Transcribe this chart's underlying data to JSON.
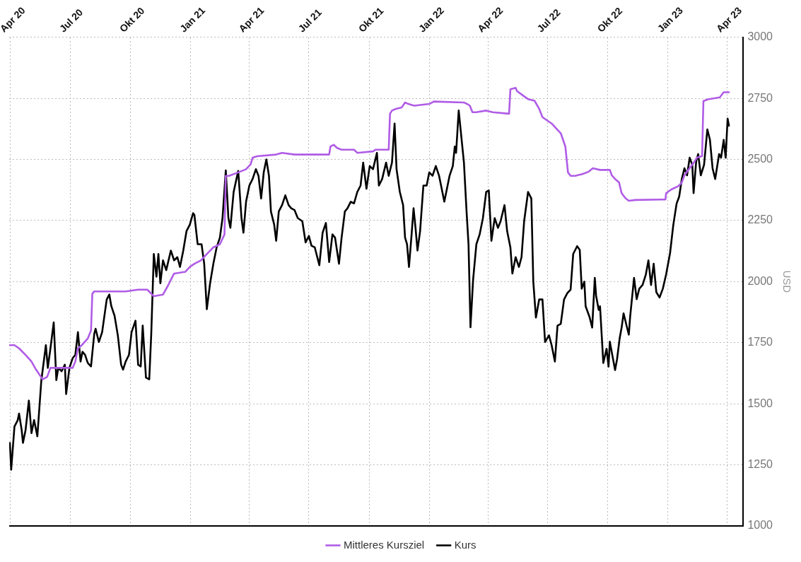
{
  "chart_data": {
    "type": "line",
    "ylabel": "USD",
    "xlim": [
      "2020-03-30",
      "2023-04-26"
    ],
    "xticks": [
      {
        "value": "2020-04-01",
        "label": "Apr 20"
      },
      {
        "value": "2020-07-01",
        "label": "Jul 20"
      },
      {
        "value": "2020-10-01",
        "label": "Okt 20"
      },
      {
        "value": "2021-01-01",
        "label": "Jan 21"
      },
      {
        "value": "2021-04-01",
        "label": "Apr 21"
      },
      {
        "value": "2021-07-01",
        "label": "Jul 21"
      },
      {
        "value": "2021-10-01",
        "label": "Okt 21"
      },
      {
        "value": "2022-01-01",
        "label": "Jan 22"
      },
      {
        "value": "2022-04-01",
        "label": "Apr 22"
      },
      {
        "value": "2022-07-01",
        "label": "Jul 22"
      },
      {
        "value": "2022-10-01",
        "label": "Okt 22"
      },
      {
        "value": "2023-01-01",
        "label": "Jan 23"
      },
      {
        "value": "2023-04-01",
        "label": "Apr 23"
      }
    ],
    "ylim": [
      1000,
      3000
    ],
    "yticks": [
      1000,
      1250,
      1500,
      1750,
      2000,
      2250,
      2500,
      2750,
      3000
    ],
    "grid": true,
    "legend": "bottom",
    "marker": "none",
    "line_style": "solid",
    "series": [
      {
        "name": "Mittleres Kursziel",
        "color": "#b05ce6",
        "x": [
          "2020-03-31",
          "2020-04-07",
          "2020-04-14",
          "2020-04-24",
          "2020-05-03",
          "2020-05-10",
          "2020-05-20",
          "2020-05-27",
          "2020-06-01",
          "2020-07-05",
          "2020-07-09",
          "2020-07-13",
          "2020-07-19",
          "2020-07-28",
          "2020-08-02",
          "2020-08-04",
          "2020-08-07",
          "2020-09-24",
          "2020-10-13",
          "2020-10-27",
          "2020-11-06",
          "2020-11-20",
          "2020-11-27",
          "2020-12-02",
          "2020-12-07",
          "2020-12-24",
          "2020-12-31",
          "2021-01-07",
          "2021-01-17",
          "2021-01-26",
          "2021-02-05",
          "2021-02-15",
          "2021-02-22",
          "2021-02-24",
          "2021-03-01",
          "2021-03-15",
          "2021-03-27",
          "2021-04-03",
          "2021-04-06",
          "2021-04-13",
          "2021-05-12",
          "2021-05-21",
          "2021-06-09",
          "2021-07-17",
          "2021-08-01",
          "2021-08-03",
          "2021-08-08",
          "2021-08-13",
          "2021-08-20",
          "2021-09-08",
          "2021-09-13",
          "2021-10-07",
          "2021-10-11",
          "2021-10-31",
          "2021-11-02",
          "2021-11-05",
          "2021-11-11",
          "2021-11-20",
          "2021-11-25",
          "2021-11-30",
          "2021-12-09",
          "2022-01-01",
          "2022-01-08",
          "2022-02-23",
          "2022-02-28",
          "2022-03-04",
          "2022-03-08",
          "2022-03-14",
          "2022-03-29",
          "2022-04-08",
          "2022-05-03",
          "2022-05-05",
          "2022-05-13",
          "2022-05-15",
          "2022-05-25",
          "2022-06-01",
          "2022-06-11",
          "2022-06-18",
          "2022-06-23",
          "2022-07-07",
          "2022-07-21",
          "2022-07-28",
          "2022-08-01",
          "2022-08-05",
          "2022-08-12",
          "2022-08-23",
          "2022-09-01",
          "2022-09-08",
          "2022-09-19",
          "2022-10-04",
          "2022-10-07",
          "2022-10-12",
          "2022-10-18",
          "2022-10-22",
          "2022-10-28",
          "2022-11-02",
          "2022-11-12",
          "2022-12-21",
          "2022-12-28",
          "2022-12-29",
          "2023-01-06",
          "2023-01-17",
          "2023-01-22",
          "2023-01-26",
          "2023-02-01",
          "2023-02-09",
          "2023-02-14",
          "2023-02-22",
          "2023-02-24",
          "2023-03-03",
          "2023-03-21",
          "2023-03-27",
          "2023-04-04"
        ],
        "values": [
          1740,
          1740,
          1727,
          1700,
          1673,
          1640,
          1600,
          1610,
          1647,
          1647,
          1673,
          1727,
          1740,
          1767,
          1800,
          1950,
          1960,
          1960,
          1967,
          1967,
          1940,
          1947,
          1980,
          2007,
          2033,
          2040,
          2060,
          2073,
          2087,
          2113,
          2140,
          2153,
          2193,
          2433,
          2433,
          2447,
          2460,
          2480,
          2507,
          2513,
          2520,
          2527,
          2520,
          2520,
          2520,
          2553,
          2560,
          2547,
          2540,
          2540,
          2527,
          2533,
          2540,
          2540,
          2687,
          2700,
          2707,
          2713,
          2733,
          2727,
          2720,
          2727,
          2737,
          2733,
          2727,
          2720,
          2693,
          2693,
          2700,
          2693,
          2687,
          2787,
          2793,
          2780,
          2760,
          2747,
          2740,
          2707,
          2673,
          2647,
          2607,
          2553,
          2447,
          2433,
          2433,
          2440,
          2449,
          2464,
          2457,
          2457,
          2435,
          2420,
          2406,
          2362,
          2341,
          2331,
          2334,
          2336,
          2336,
          2362,
          2377,
          2391,
          2406,
          2435,
          2457,
          2486,
          2507,
          2514,
          2739,
          2746,
          2754,
          2775,
          2775
        ]
      },
      {
        "name": "Kurs",
        "color": "#000000",
        "x": [
          "2020-03-31",
          "2020-04-02",
          "2020-04-07",
          "2020-04-12",
          "2020-04-14",
          "2020-04-18",
          "2020-04-20",
          "2020-04-24",
          "2020-04-29",
          "2020-05-03",
          "2020-05-07",
          "2020-05-12",
          "2020-05-18",
          "2020-05-25",
          "2020-05-28",
          "2020-06-01",
          "2020-06-06",
          "2020-06-10",
          "2020-06-13",
          "2020-06-18",
          "2020-06-23",
          "2020-06-25",
          "2020-06-30",
          "2020-07-05",
          "2020-07-09",
          "2020-07-13",
          "2020-07-17",
          "2020-07-20",
          "2020-07-24",
          "2020-07-28",
          "2020-08-02",
          "2020-08-07",
          "2020-08-09",
          "2020-08-14",
          "2020-08-19",
          "2020-08-26",
          "2020-08-30",
          "2020-09-02",
          "2020-09-07",
          "2020-09-12",
          "2020-09-17",
          "2020-09-20",
          "2020-09-24",
          "2020-09-29",
          "2020-10-03",
          "2020-10-09",
          "2020-10-13",
          "2020-10-17",
          "2020-10-20",
          "2020-10-25",
          "2020-10-30",
          "2020-11-02",
          "2020-11-06",
          "2020-11-10",
          "2020-11-13",
          "2020-11-16",
          "2020-11-20",
          "2020-11-25",
          "2020-12-02",
          "2020-12-07",
          "2020-12-12",
          "2020-12-16",
          "2020-12-21",
          "2020-12-26",
          "2020-12-31",
          "2021-01-05",
          "2021-01-07",
          "2021-01-12",
          "2021-01-18",
          "2021-01-22",
          "2021-01-26",
          "2021-01-31",
          "2021-02-05",
          "2021-02-10",
          "2021-02-15",
          "2021-02-19",
          "2021-02-24",
          "2021-02-28",
          "2021-03-03",
          "2021-03-08",
          "2021-03-15",
          "2021-03-20",
          "2021-03-23",
          "2021-03-27",
          "2021-04-01",
          "2021-04-06",
          "2021-04-11",
          "2021-04-15",
          "2021-04-19",
          "2021-04-23",
          "2021-04-27",
          "2021-05-01",
          "2021-05-04",
          "2021-05-09",
          "2021-05-12",
          "2021-05-16",
          "2021-05-21",
          "2021-05-26",
          "2021-05-31",
          "2021-06-04",
          "2021-06-09",
          "2021-06-14",
          "2021-06-21",
          "2021-06-26",
          "2021-07-01",
          "2021-07-05",
          "2021-07-10",
          "2021-07-17",
          "2021-07-22",
          "2021-07-27",
          "2021-08-01",
          "2021-08-06",
          "2021-08-10",
          "2021-08-16",
          "2021-08-20",
          "2021-08-25",
          "2021-08-29",
          "2021-09-03",
          "2021-09-08",
          "2021-09-13",
          "2021-09-18",
          "2021-09-22",
          "2021-09-27",
          "2021-10-02",
          "2021-10-07",
          "2021-10-13",
          "2021-10-16",
          "2021-10-21",
          "2021-10-27",
          "2021-10-31",
          "2021-11-05",
          "2021-11-09",
          "2021-11-12",
          "2021-11-17",
          "2021-11-22",
          "2021-11-25",
          "2021-11-28",
          "2021-12-01",
          "2021-12-05",
          "2021-12-08",
          "2021-12-11",
          "2021-12-14",
          "2021-12-18",
          "2021-12-23",
          "2021-12-28",
          "2022-01-01",
          "2022-01-06",
          "2022-01-11",
          "2022-01-16",
          "2022-01-21",
          "2022-01-24",
          "2022-01-28",
          "2022-02-01",
          "2022-02-06",
          "2022-02-09",
          "2022-02-11",
          "2022-02-15",
          "2022-02-19",
          "2022-02-23",
          "2022-02-27",
          "2022-03-02",
          "2022-03-05",
          "2022-03-09",
          "2022-03-14",
          "2022-03-19",
          "2022-03-24",
          "2022-03-29",
          "2022-04-02",
          "2022-04-06",
          "2022-04-11",
          "2022-04-16",
          "2022-04-20",
          "2022-04-26",
          "2022-04-30",
          "2022-05-05",
          "2022-05-08",
          "2022-05-13",
          "2022-05-18",
          "2022-05-22",
          "2022-05-26",
          "2022-06-01",
          "2022-06-06",
          "2022-06-09",
          "2022-06-13",
          "2022-06-18",
          "2022-06-23",
          "2022-06-27",
          "2022-07-03",
          "2022-07-07",
          "2022-07-12",
          "2022-07-16",
          "2022-07-21",
          "2022-07-26",
          "2022-07-31",
          "2022-08-05",
          "2022-08-09",
          "2022-08-15",
          "2022-08-19",
          "2022-08-22",
          "2022-08-26",
          "2022-08-28",
          "2022-09-03",
          "2022-09-07",
          "2022-09-11",
          "2022-09-13",
          "2022-09-17",
          "2022-09-19",
          "2022-09-24",
          "2022-09-29",
          "2022-10-02",
          "2022-10-04",
          "2022-10-08",
          "2022-10-12",
          "2022-10-15",
          "2022-10-19",
          "2022-10-22",
          "2022-10-25",
          "2022-10-29",
          "2022-11-02",
          "2022-11-04",
          "2022-11-10",
          "2022-11-14",
          "2022-11-18",
          "2022-11-23",
          "2022-11-28",
          "2022-12-02",
          "2022-12-06",
          "2022-12-10",
          "2022-12-14",
          "2022-12-19",
          "2022-12-24",
          "2022-12-29",
          "2023-01-04",
          "2023-01-09",
          "2023-01-14",
          "2023-01-18",
          "2023-01-22",
          "2023-01-26",
          "2023-01-30",
          "2023-02-03",
          "2023-02-07",
          "2023-02-09",
          "2023-02-13",
          "2023-02-16",
          "2023-02-20",
          "2023-02-25",
          "2023-03-02",
          "2023-03-06",
          "2023-03-10",
          "2023-03-14",
          "2023-03-20",
          "2023-03-23",
          "2023-03-27",
          "2023-03-30",
          "2023-04-02",
          "2023-04-04"
        ],
        "values": [
          1340,
          1230,
          1407,
          1433,
          1460,
          1393,
          1340,
          1393,
          1513,
          1380,
          1433,
          1367,
          1593,
          1740,
          1647,
          1727,
          1833,
          1597,
          1647,
          1633,
          1660,
          1540,
          1647,
          1687,
          1700,
          1793,
          1673,
          1713,
          1700,
          1667,
          1653,
          1787,
          1807,
          1753,
          1793,
          1927,
          1947,
          1900,
          1860,
          1780,
          1660,
          1640,
          1673,
          1700,
          1793,
          1840,
          1660,
          1653,
          1820,
          1607,
          1600,
          1780,
          2113,
          2020,
          2113,
          1993,
          2087,
          2047,
          2127,
          2087,
          2100,
          2060,
          2127,
          2207,
          2233,
          2280,
          2273,
          2153,
          2153,
          2073,
          1887,
          1993,
          2073,
          2140,
          2180,
          2260,
          2455,
          2260,
          2220,
          2367,
          2453,
          2260,
          2200,
          2327,
          2393,
          2420,
          2460,
          2433,
          2340,
          2447,
          2500,
          2433,
          2287,
          2233,
          2167,
          2287,
          2313,
          2353,
          2313,
          2300,
          2293,
          2260,
          2247,
          2160,
          2187,
          2147,
          2140,
          2067,
          2200,
          2240,
          2080,
          2193,
          2180,
          2073,
          2180,
          2287,
          2300,
          2327,
          2320,
          2367,
          2393,
          2487,
          2380,
          2473,
          2460,
          2527,
          2393,
          2420,
          2487,
          2433,
          2487,
          2647,
          2460,
          2367,
          2313,
          2180,
          2153,
          2060,
          2193,
          2300,
          2220,
          2127,
          2207,
          2393,
          2393,
          2447,
          2433,
          2473,
          2433,
          2367,
          2327,
          2380,
          2433,
          2473,
          2553,
          2527,
          2700,
          2593,
          2487,
          2287,
          2153,
          1813,
          2007,
          2153,
          2193,
          2260,
          2367,
          2373,
          2167,
          2260,
          2220,
          2247,
          2313,
          2207,
          2140,
          2033,
          2100,
          2060,
          2100,
          2247,
          2367,
          2340,
          2000,
          1853,
          1927,
          1927,
          1753,
          1780,
          1740,
          1673,
          1820,
          1827,
          1927,
          1953,
          1967,
          2113,
          2145,
          2130,
          1971,
          2000,
          1899,
          1855,
          1812,
          2015,
          1942,
          1884,
          1899,
          1667,
          1725,
          1652,
          1754,
          1696,
          1638,
          1682,
          1768,
          1812,
          1870,
          1826,
          1783,
          1855,
          2015,
          1928,
          1971,
          1986,
          2029,
          2087,
          1986,
          2073,
          1957,
          1935,
          1971,
          2029,
          2116,
          2232,
          2319,
          2348,
          2420,
          2464,
          2435,
          2507,
          2478,
          2362,
          2493,
          2522,
          2435,
          2478,
          2623,
          2580,
          2464,
          2420,
          2522,
          2507,
          2580,
          2507,
          2667,
          2638
        ]
      }
    ]
  }
}
